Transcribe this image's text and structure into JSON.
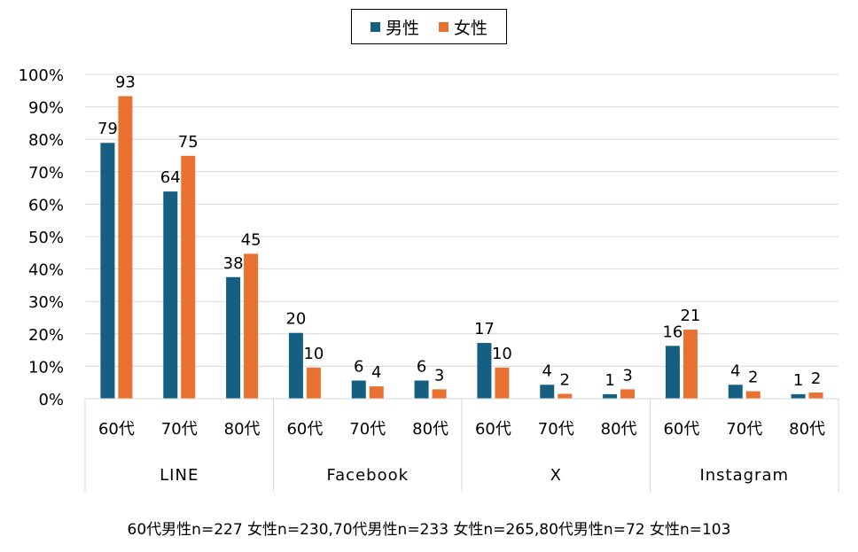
{
  "chart_data": {
    "type": "bar",
    "groups": [
      {
        "platform": "LINE",
        "categories": [
          "60代",
          "70代",
          "80代"
        ]
      },
      {
        "platform": "Facebook",
        "categories": [
          "60代",
          "70代",
          "80代"
        ]
      },
      {
        "platform": "X",
        "categories": [
          "60代",
          "70代",
          "80代"
        ]
      },
      {
        "platform": "Instagram",
        "categories": [
          "60代",
          "70代",
          "80代"
        ]
      }
    ],
    "series": [
      {
        "name": "男性",
        "color": "#156082",
        "values": [
          79,
          64,
          38,
          20,
          6,
          6,
          17,
          4,
          1,
          16,
          4,
          1
        ]
      },
      {
        "name": "女性",
        "color": "#E97132",
        "values": [
          93,
          75,
          45,
          10,
          4,
          3,
          10,
          2,
          3,
          21,
          2,
          2
        ]
      }
    ],
    "bar_values_pct": {
      "男性": [
        78.9,
        63.9,
        37.5,
        20.3,
        5.6,
        5.6,
        17.2,
        4.3,
        1.4,
        16.3,
        4.3,
        1.4
      ],
      "女性": [
        93.3,
        74.9,
        44.7,
        9.6,
        3.8,
        2.9,
        9.6,
        1.5,
        2.9,
        21.3,
        2.3,
        1.9
      ]
    },
    "yticks": [
      "0%",
      "10%",
      "20%",
      "30%",
      "40%",
      "50%",
      "60%",
      "70%",
      "80%",
      "90%",
      "100%"
    ],
    "ylim": [
      0,
      100
    ],
    "legend_position": "top-center",
    "grid": true
  },
  "legend": {
    "male": "男性",
    "female": "女性"
  },
  "footnote": "60代男性n=227 女性n=230,70代男性n=233 女性n=265,80代男性n=72 女性n=103"
}
